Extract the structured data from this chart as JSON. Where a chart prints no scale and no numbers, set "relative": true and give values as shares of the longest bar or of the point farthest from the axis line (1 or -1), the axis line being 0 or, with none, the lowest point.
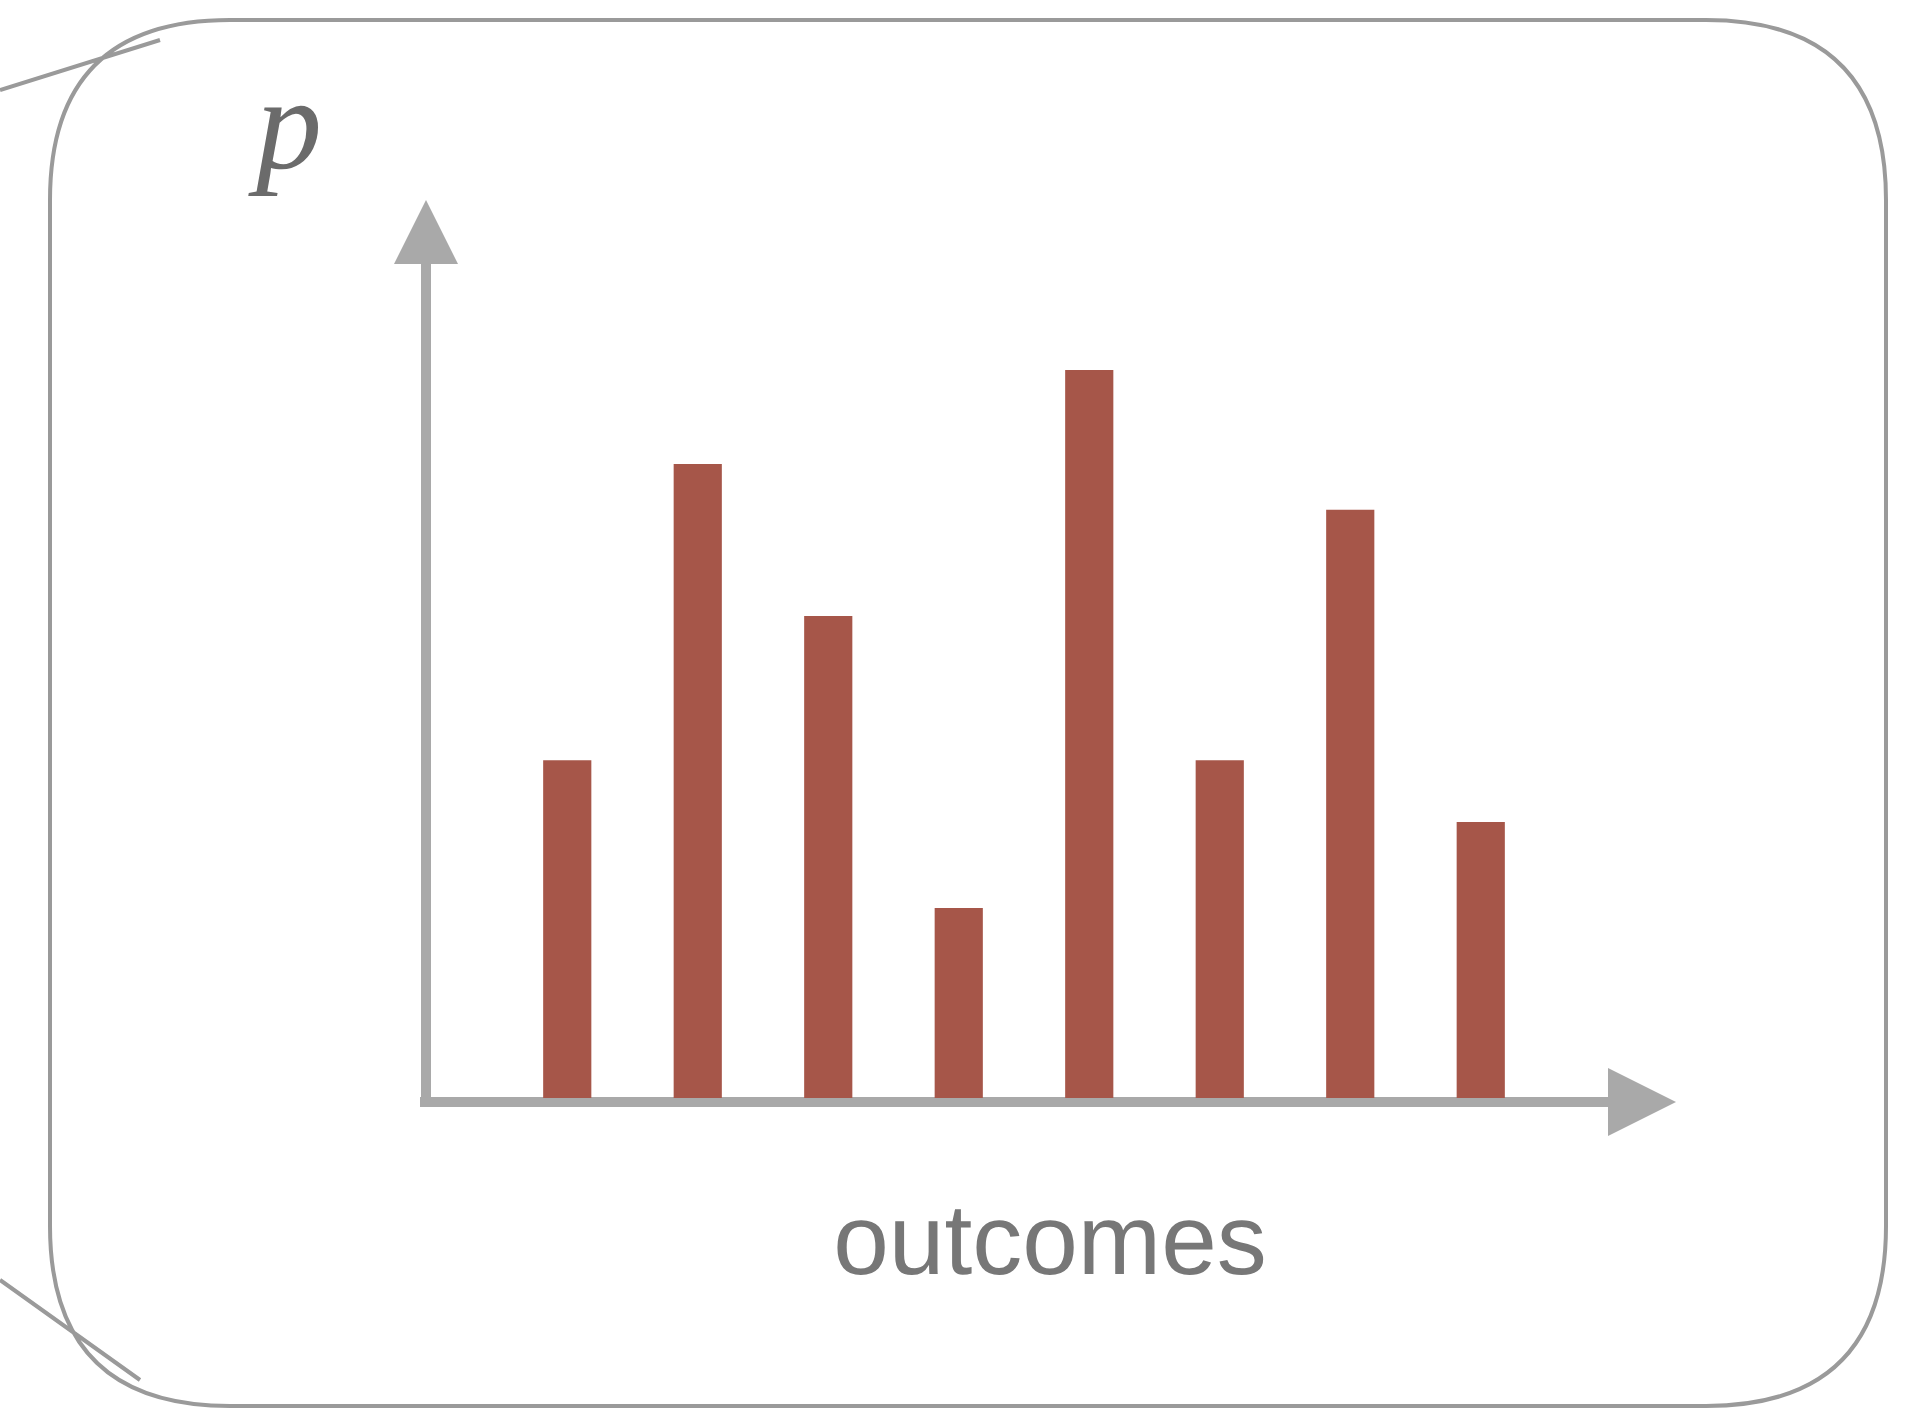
{
  "chart_data": {
    "type": "bar",
    "relative": true,
    "xlabel": "outcomes",
    "ylabel": "p",
    "color": "#a65649",
    "categories": [
      null,
      null,
      null,
      null,
      null,
      null,
      null,
      null
    ],
    "values": [
      0.464,
      0.871,
      0.662,
      0.261,
      1,
      0.464,
      0.808,
      0.379
    ]
  }
}
